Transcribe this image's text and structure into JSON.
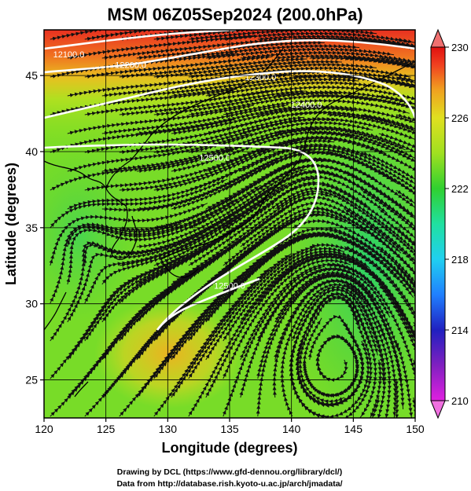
{
  "title": "MSM 06Z05Sep2024 (200.0hPa)",
  "map": {
    "xlabel": "Longitude (degrees)",
    "ylabel": "Latitude  (degrees)",
    "lon_range": [
      120,
      150
    ],
    "lat_range": [
      22.5,
      48
    ],
    "lon_ticks": [
      "120",
      "125",
      "130",
      "135",
      "140",
      "145",
      "150"
    ],
    "lat_ticks": [
      "25",
      "30",
      "35",
      "40",
      "45"
    ],
    "lon_tick_values": [
      120,
      125,
      130,
      135,
      140,
      145,
      150
    ],
    "lat_tick_values": [
      25,
      30,
      35,
      40,
      45
    ],
    "grid": true,
    "field": "temperature-like shaded field with streamlines and height contours",
    "contours": [
      {
        "label": "12100.0",
        "lon": 122.0,
        "lat": 46.2
      },
      {
        "label": "12200.0",
        "lon": 127.0,
        "lat": 45.5
      },
      {
        "label": "12300.0",
        "lon": 137.5,
        "lat": 44.7
      },
      {
        "label": "12400.0",
        "lon": 141.2,
        "lat": 42.9
      },
      {
        "label": "12500.0",
        "lon": 133.8,
        "lat": 39.4
      },
      {
        "label": "12500.0",
        "lon": 135.0,
        "lat": 31.0
      }
    ]
  },
  "colorbar": {
    "ticks": [
      "230",
      "226",
      "222",
      "218",
      "214",
      "210"
    ],
    "tick_values": [
      230,
      226,
      222,
      218,
      214,
      210
    ],
    "range": [
      210,
      230
    ],
    "colors": [
      "#e020e0",
      "#8020c0",
      "#2020c0",
      "#2080ff",
      "#20d0f0",
      "#20e0a0",
      "#30d030",
      "#a0e020",
      "#e0e020",
      "#f0a020",
      "#f04020",
      "#e01010"
    ],
    "extend_arrow_color_top": "#f07070",
    "extend_arrow_color_bottom": "#f070e0"
  },
  "credits": {
    "line1": "Drawing by DCL (https://www.gfd-dennou.org/library/dcl/)",
    "line2": "Data from http://database.rish.kyoto-u.ac.jp/arch/jmadata/"
  }
}
